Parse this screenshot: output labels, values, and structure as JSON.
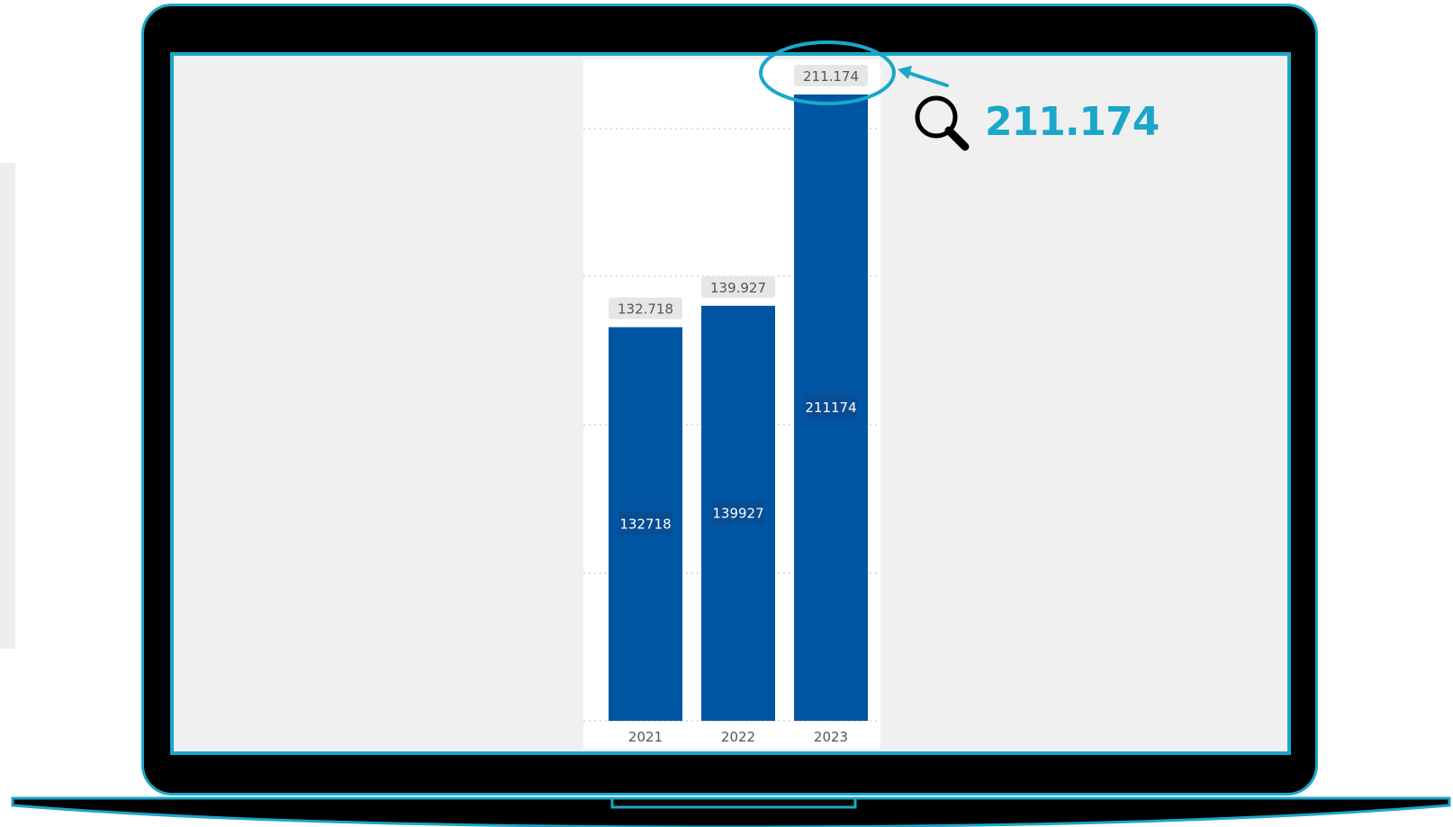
{
  "chart_data": {
    "type": "bar",
    "categories": [
      "2021",
      "2022",
      "2023"
    ],
    "values": [
      132718,
      139927,
      211174
    ],
    "top_labels": [
      "132.718",
      "139.927",
      "211.174"
    ],
    "inner_labels": [
      "132718",
      "139927",
      "211174"
    ],
    "ylim": [
      0,
      220000
    ],
    "grid": true,
    "bar_color": "#0055a3"
  },
  "annotation": {
    "highlighted_value": "211.174",
    "icon": "magnifier-icon",
    "accent_color": "#1aa7c9"
  }
}
